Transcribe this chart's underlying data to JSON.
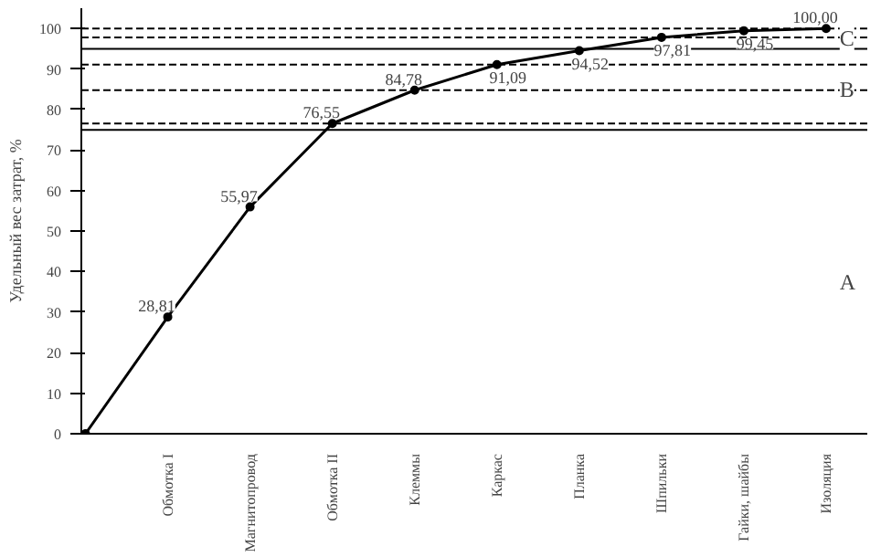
{
  "chart_data": {
    "type": "line",
    "ylabel": "Удельный вес затрат, %",
    "categories": [
      null,
      "Обмотка I",
      "Магнитопровод",
      "Обмотка II",
      "Клеммы",
      "Каркас",
      "Планка",
      "Шпильки",
      "Гайки, шайбы",
      "Изоляция"
    ],
    "series": [
      {
        "color": "#000000",
        "values": [
          0,
          28.81,
          55.97,
          76.55,
          84.78,
          91.09,
          94.52,
          97.81,
          99.45,
          100.0
        ],
        "value_labels": [
          null,
          "28,81",
          "55,97",
          "76,55",
          "84,78",
          "91,09",
          "94,52",
          "97,81",
          "99,45",
          "100,00"
        ]
      }
    ],
    "ylim": [
      0,
      105
    ],
    "yticks": [
      0,
      10,
      20,
      30,
      40,
      50,
      60,
      70,
      80,
      90,
      100
    ],
    "marker": "circle",
    "line_style": "solid",
    "grid": false,
    "ref_lines": [
      {
        "axis": "y",
        "value": 75,
        "line_style": "solid",
        "color": "#000000"
      },
      {
        "axis": "y",
        "value": 95,
        "line_style": "solid",
        "color": "#000000"
      },
      {
        "axis": "y",
        "value": 76.55,
        "line_style": "dashed",
        "color": "#000000"
      },
      {
        "axis": "y",
        "value": 84.78,
        "line_style": "dashed",
        "color": "#000000"
      },
      {
        "axis": "y",
        "value": 91.09,
        "line_style": "dashed",
        "color": "#000000"
      },
      {
        "axis": "y",
        "value": 97.81,
        "line_style": "dashed",
        "color": "#000000"
      },
      {
        "axis": "y",
        "value": 100,
        "line_style": "dashed",
        "color": "#000000"
      }
    ],
    "annotations": [
      {
        "text": "A",
        "y": 37.5
      },
      {
        "text": "B",
        "y": 85
      },
      {
        "text": "C",
        "y": 97.5
      }
    ]
  }
}
